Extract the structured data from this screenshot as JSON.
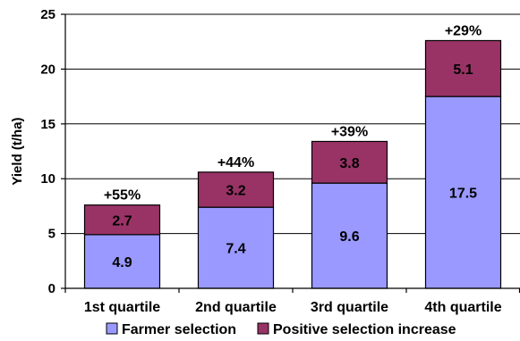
{
  "chart_data": {
    "type": "bar",
    "stacked": true,
    "categories": [
      "1st quartile",
      "2nd quartile",
      "3rd quartile",
      "4th quartile"
    ],
    "series": [
      {
        "name": "Farmer selection",
        "values": [
          4.9,
          7.4,
          9.6,
          17.5
        ],
        "labels": [
          "4.9",
          "7.4",
          "9.6",
          "17.5"
        ],
        "color": "#9999ff"
      },
      {
        "name": "Positive selection increase",
        "values": [
          2.7,
          3.2,
          3.8,
          5.1
        ],
        "labels": [
          "2.7",
          "3.2",
          "3.8",
          "5.1"
        ],
        "color": "#993366"
      }
    ],
    "annotations": [
      "+55%",
      "+44%",
      "+39%",
      "+29%"
    ],
    "ylabel": "Yield (t/ha)",
    "xlabel": "",
    "title": "",
    "ylim": [
      0,
      25
    ],
    "yticks": [
      0,
      5,
      10,
      15,
      20,
      25
    ],
    "ytick_labels": [
      "0",
      "5",
      "10",
      "15",
      "20",
      "25"
    ],
    "grid": true,
    "legend_position": "bottom"
  }
}
